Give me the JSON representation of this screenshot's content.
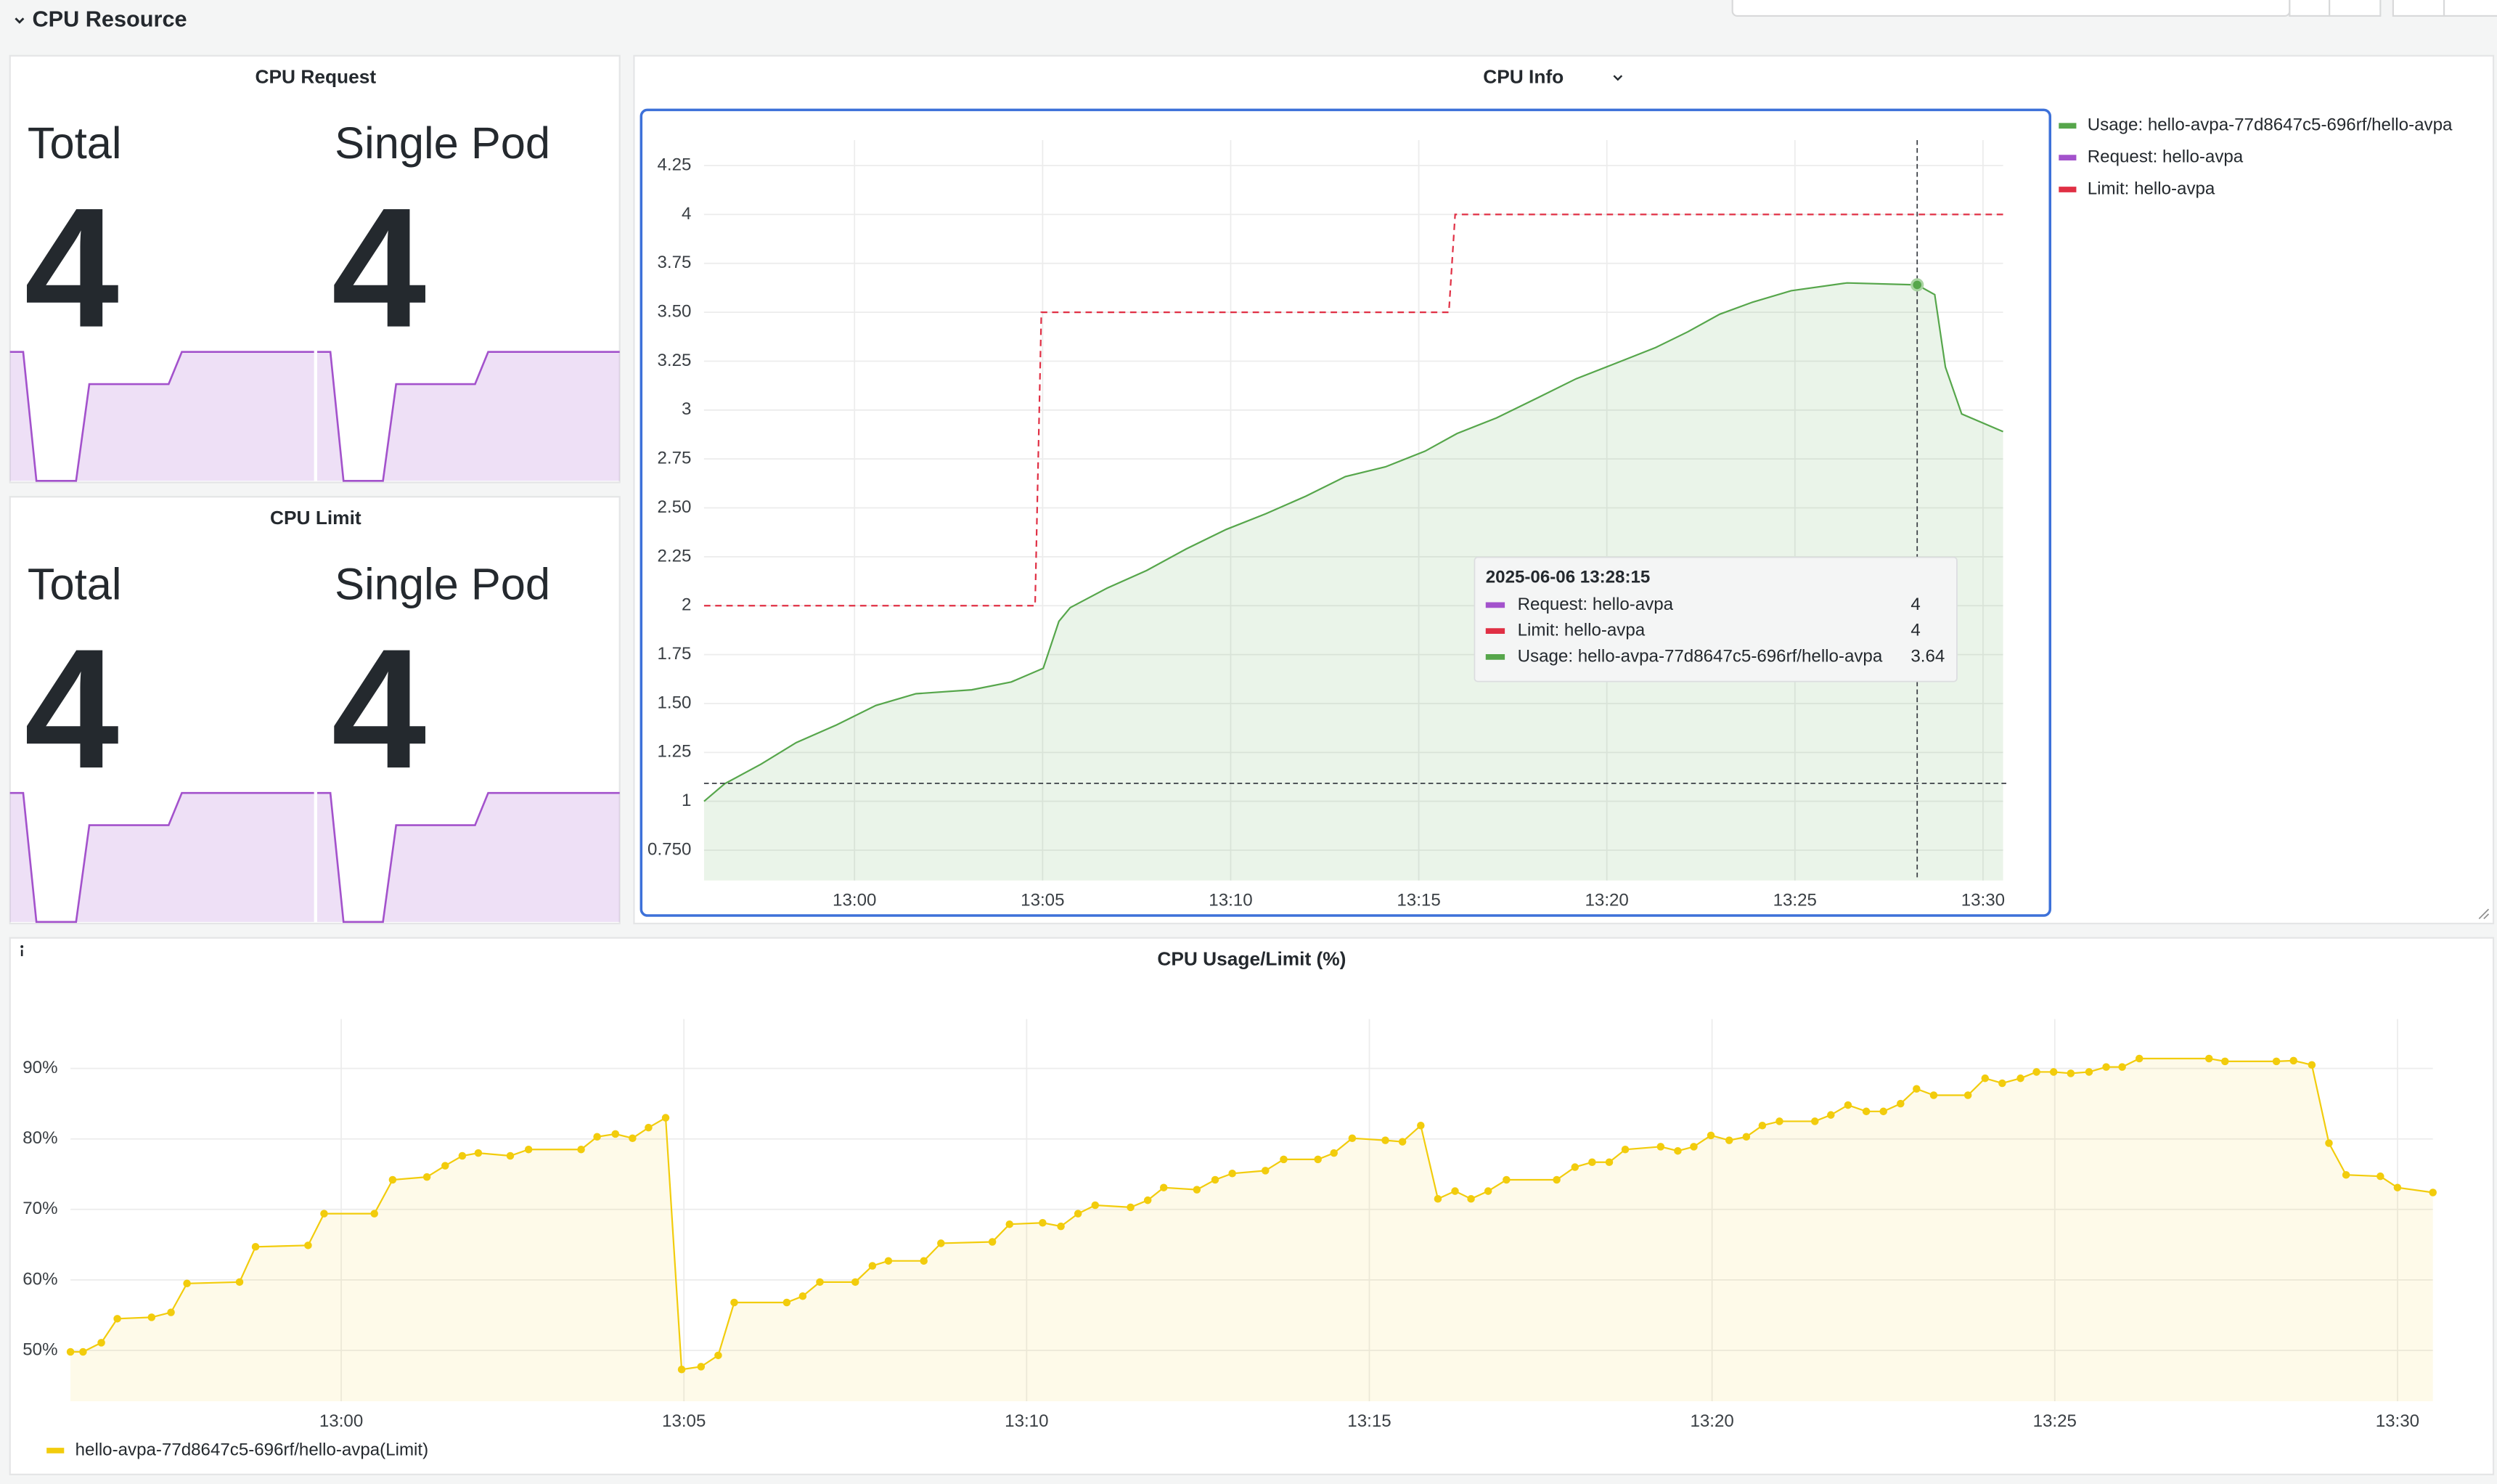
{
  "section": "CPU Resource",
  "stat_panels": [
    {
      "title": "CPU Request",
      "color": "#a352cc",
      "stats": [
        {
          "label": "Total",
          "value": 4,
          "sparkline": [
            4,
            4,
            2,
            2,
            2,
            2,
            3.5,
            3.5,
            3.5,
            3.5,
            3.5,
            3.5,
            3.5,
            4,
            4,
            4,
            4,
            4,
            4,
            4,
            4,
            4,
            4,
            4
          ]
        },
        {
          "label": "Single Pod",
          "value": 4,
          "sparkline": [
            4,
            4,
            2,
            2,
            2,
            2,
            3.5,
            3.5,
            3.5,
            3.5,
            3.5,
            3.5,
            3.5,
            4,
            4,
            4,
            4,
            4,
            4,
            4,
            4,
            4,
            4,
            4
          ]
        }
      ]
    },
    {
      "title": "CPU Limit",
      "color": "#a352cc",
      "stats": [
        {
          "label": "Total",
          "value": 4,
          "sparkline": [
            4,
            4,
            2,
            2,
            2,
            2,
            3.5,
            3.5,
            3.5,
            3.5,
            3.5,
            3.5,
            3.5,
            4,
            4,
            4,
            4,
            4,
            4,
            4,
            4,
            4,
            4,
            4
          ]
        },
        {
          "label": "Single Pod",
          "value": 4,
          "sparkline": [
            4,
            4,
            2,
            2,
            2,
            2,
            3.5,
            3.5,
            3.5,
            3.5,
            3.5,
            3.5,
            3.5,
            4,
            4,
            4,
            4,
            4,
            4,
            4,
            4,
            4,
            4,
            4
          ]
        }
      ]
    }
  ],
  "chart_data": [
    {
      "type": "line",
      "title": "CPU Info",
      "xlim": [
        "12:56:00",
        "13:30:32"
      ],
      "ylim": [
        0.595,
        4.38
      ],
      "xticks": [
        "13:00",
        "13:05",
        "13:10",
        "13:15",
        "13:20",
        "13:25",
        "13:30"
      ],
      "yticks": [
        4.25,
        4,
        3.75,
        {
          "value": 3.5,
          "label": "3.50"
        },
        3.25,
        3,
        2.75,
        {
          "value": 2.5,
          "label": "2.50"
        },
        2.25,
        2,
        1.75,
        {
          "value": 1.5,
          "label": "1.50"
        },
        1.25,
        1,
        {
          "value": 0.75,
          "label": "0.750"
        }
      ],
      "grid": true,
      "legend": "right",
      "series": [
        {
          "name": "Usage: hello-avpa-77d8647c5-696rf/hello-avpa",
          "color": "#56a64b",
          "fill": true,
          "x": [
            "12:56:00",
            "12:56:33",
            "12:57:31",
            "12:58:27",
            "12:59:31",
            "13:00:34",
            "13:01:38",
            "13:03:07",
            "13:04:10",
            "13:05:01",
            "13:05:26",
            "13:05:44",
            "13:06:43",
            "13:07:46",
            "13:08:49",
            "13:09:53",
            "13:10:56",
            "13:12:00",
            "13:13:03",
            "13:14:07",
            "13:15:10",
            "13:16:01",
            "13:17:04",
            "13:18:08",
            "13:19:11",
            "13:20:15",
            "13:21:18",
            "13:22:09",
            "13:23:00",
            "13:23:51",
            "13:24:54",
            "13:26:23",
            "13:28:15",
            "13:28:43",
            "13:29:00",
            "13:29:26",
            "13:30:32"
          ],
          "values": [
            1.0,
            1.09,
            1.19,
            1.3,
            1.39,
            1.49,
            1.55,
            1.57,
            1.61,
            1.68,
            1.92,
            1.99,
            2.09,
            2.18,
            2.29,
            2.39,
            2.47,
            2.56,
            2.66,
            2.71,
            2.79,
            2.88,
            2.96,
            3.06,
            3.16,
            3.24,
            3.32,
            3.4,
            3.49,
            3.55,
            3.61,
            3.65,
            3.64,
            3.59,
            3.22,
            2.98,
            2.89
          ]
        },
        {
          "name": "Request: hello-avpa",
          "color": "#a352cc"
        },
        {
          "name": "Limit: hello-avpa",
          "color": "#e02f44",
          "line_style": "dashed",
          "x": [
            "12:56:00",
            "13:04:48",
            "13:04:58",
            "13:15:48",
            "13:15:58",
            "13:30:32"
          ],
          "values": [
            2,
            2,
            3.5,
            3.5,
            4,
            4
          ]
        }
      ],
      "tooltip": {
        "time": "2025-06-06 13:28:15",
        "rows": [
          {
            "name": "Request: hello-avpa",
            "color": "#a352cc",
            "value": 4
          },
          {
            "name": "Limit: hello-avpa",
            "color": "#e02f44",
            "value": 4
          },
          {
            "name": "Usage: hello-avpa-77d8647c5-696rf/hello-avpa",
            "color": "#56a64b",
            "value": 3.64
          }
        ]
      }
    },
    {
      "type": "line",
      "title": "CPU Usage/Limit (%)",
      "xlim": [
        "12:56:03",
        "13:30:31"
      ],
      "ylim": [
        42.8,
        97
      ],
      "xticks": [
        "13:00",
        "13:05",
        "13:10",
        "13:15",
        "13:20",
        "13:25",
        "13:30"
      ],
      "yticks": [
        {
          "value": 90,
          "label": "90%"
        },
        {
          "value": 80,
          "label": "80%"
        },
        {
          "value": 70,
          "label": "70%"
        },
        {
          "value": 60,
          "label": "60%"
        },
        {
          "value": 50,
          "label": "50%"
        }
      ],
      "grid": true,
      "legend": "bottom-left",
      "series": [
        {
          "name": "hello-avpa-77d8647c5-696rf/hello-avpa(Limit)",
          "color": "#f2cc0c",
          "fill": true,
          "points": true,
          "x": [
            "12:56:03",
            "12:56:14",
            "12:56:30",
            "12:56:44",
            "12:57:14",
            "12:57:31",
            "12:57:45",
            "12:58:31",
            "12:58:45",
            "12:59:31",
            "12:59:45",
            "13:00:29",
            "13:00:45",
            "13:01:15",
            "13:01:31",
            "13:01:46",
            "13:02:00",
            "13:02:28",
            "13:02:44",
            "13:03:30",
            "13:03:44",
            "13:04:00",
            "13:04:15",
            "13:04:29",
            "13:04:44",
            "13:04:58",
            "13:05:15",
            "13:05:30",
            "13:05:44",
            "13:06:30",
            "13:06:44",
            "13:06:59",
            "13:07:30",
            "13:07:45",
            "13:07:59",
            "13:08:30",
            "13:08:45",
            "13:09:30",
            "13:09:45",
            "13:10:14",
            "13:10:30",
            "13:10:45",
            "13:11:00",
            "13:11:31",
            "13:11:46",
            "13:12:00",
            "13:12:29",
            "13:12:45",
            "13:13:00",
            "13:13:29",
            "13:13:45",
            "13:14:15",
            "13:14:29",
            "13:14:45",
            "13:15:14",
            "13:15:29",
            "13:15:45",
            "13:16:00",
            "13:16:15",
            "13:16:29",
            "13:16:44",
            "13:17:00",
            "13:17:44",
            "13:18:00",
            "13:18:15",
            "13:18:30",
            "13:18:44",
            "13:19:15",
            "13:19:30",
            "13:19:44",
            "13:19:59",
            "13:20:15",
            "13:20:30",
            "13:20:44",
            "13:20:59",
            "13:21:30",
            "13:21:44",
            "13:21:59",
            "13:22:15",
            "13:22:30",
            "13:22:45",
            "13:22:59",
            "13:23:14",
            "13:23:44",
            "13:23:59",
            "13:24:14",
            "13:24:30",
            "13:24:44",
            "13:24:59",
            "13:25:14",
            "13:25:30",
            "13:25:45",
            "13:25:59",
            "13:26:14",
            "13:27:15",
            "13:27:29",
            "13:28:14",
            "13:28:29",
            "13:28:45",
            "13:29:00",
            "13:29:15",
            "13:29:45",
            "13:30:00",
            "13:30:31"
          ],
          "values": [
            49.8,
            49.8,
            51.1,
            54.5,
            54.7,
            55.4,
            59.5,
            59.7,
            64.7,
            64.9,
            69.4,
            69.4,
            74.2,
            74.6,
            76.2,
            77.6,
            78.0,
            77.6,
            78.5,
            78.5,
            80.3,
            80.7,
            80.1,
            81.6,
            83.0,
            47.3,
            47.7,
            49.3,
            56.8,
            56.8,
            57.7,
            59.7,
            59.7,
            62.0,
            62.7,
            62.7,
            65.2,
            65.4,
            67.9,
            68.1,
            67.6,
            69.4,
            70.6,
            70.3,
            71.3,
            73.1,
            72.8,
            74.2,
            75.1,
            75.5,
            77.1,
            77.1,
            78.0,
            80.1,
            79.8,
            79.6,
            81.9,
            71.5,
            72.6,
            71.5,
            72.6,
            74.2,
            74.2,
            76.0,
            76.7,
            76.7,
            78.5,
            78.9,
            78.3,
            78.9,
            80.5,
            79.8,
            80.3,
            81.9,
            82.5,
            82.5,
            83.4,
            84.8,
            83.9,
            83.9,
            85.0,
            87.1,
            86.2,
            86.2,
            88.6,
            87.9,
            88.6,
            89.5,
            89.5,
            89.3,
            89.5,
            90.2,
            90.2,
            91.4,
            91.4,
            91.0,
            91.0,
            91.1,
            90.5,
            79.4,
            74.9,
            74.7,
            73.1,
            72.4
          ]
        }
      ]
    }
  ]
}
